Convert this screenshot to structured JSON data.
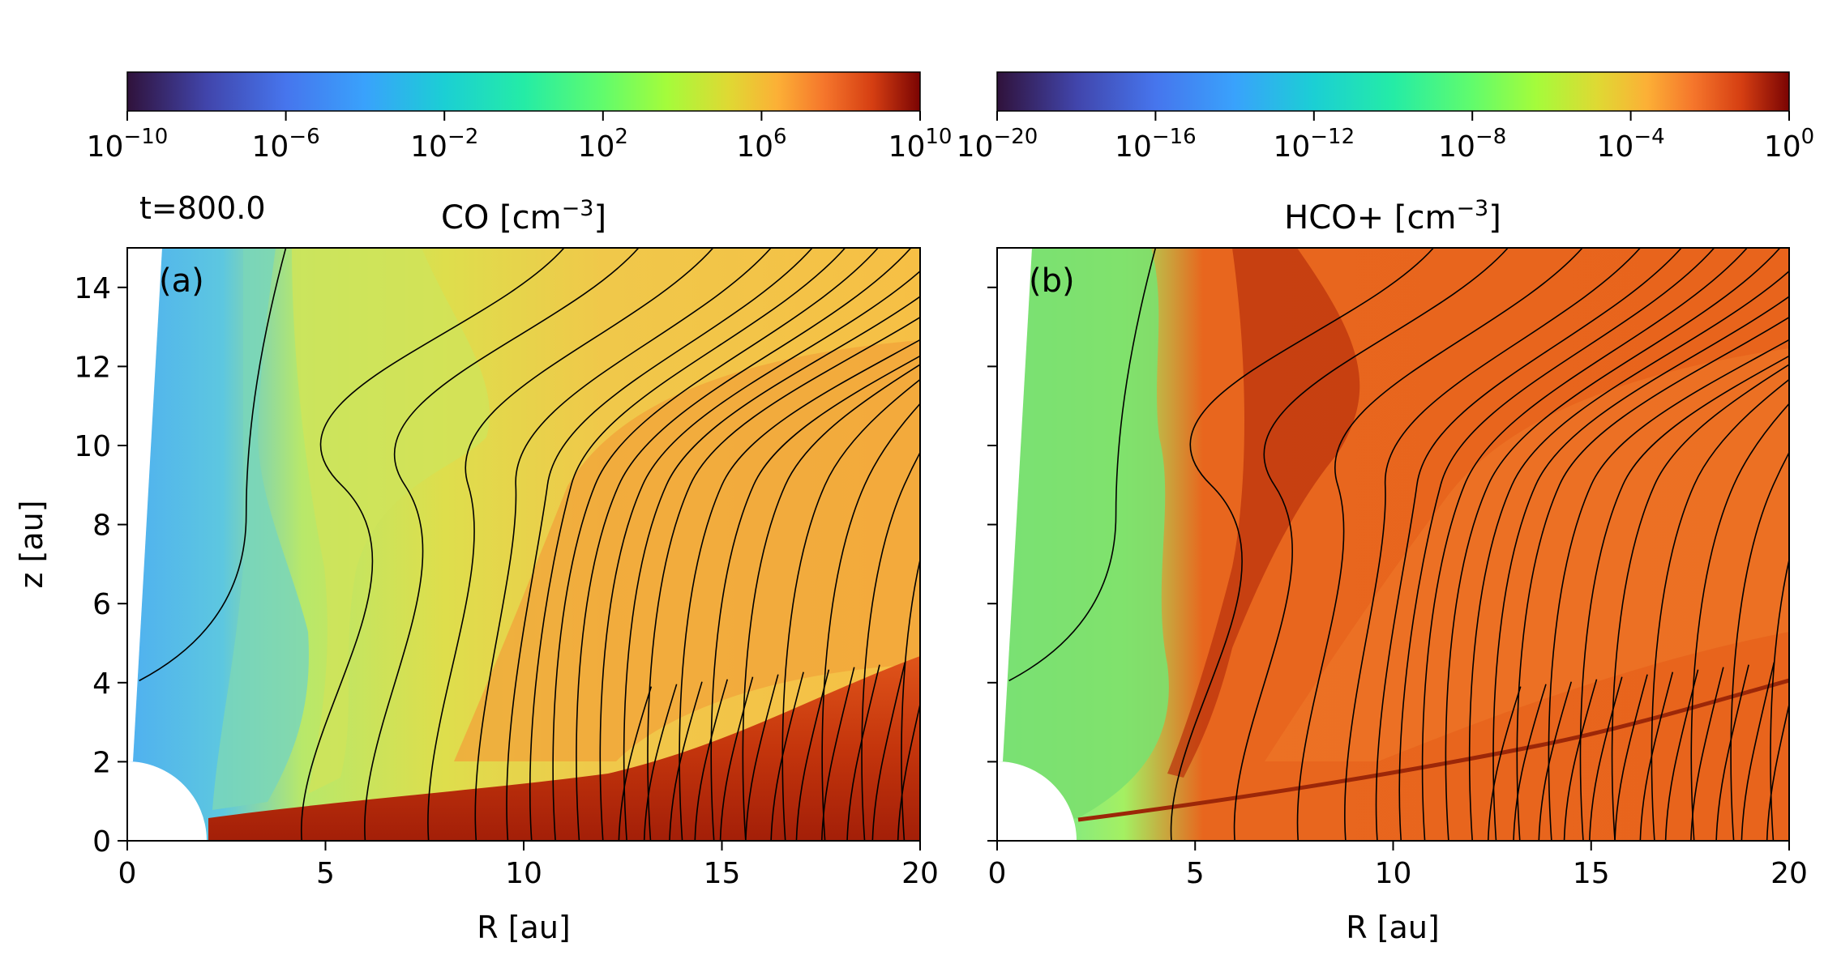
{
  "time_label": "t=800.0",
  "chart_data": [
    {
      "type": "heatmap",
      "panel_label": "(a)",
      "title": "CO [cm",
      "title_sup": "−3",
      "title_end": "]",
      "xlabel": "R [au]",
      "ylabel": "z [au]",
      "xlim": [
        0,
        20
      ],
      "ylim": [
        0,
        15
      ],
      "x_ticks": [
        "0",
        "5",
        "10",
        "15",
        "20"
      ],
      "y_ticks": [
        "0",
        "2",
        "4",
        "6",
        "8",
        "10",
        "12",
        "14"
      ],
      "colorbar": {
        "scale": "log",
        "range": [
          1e-10,
          10000000000.0
        ],
        "ticks": [
          {
            "base": "10",
            "exp": "−10"
          },
          {
            "base": "10",
            "exp": "−6"
          },
          {
            "base": "10",
            "exp": "−2"
          },
          {
            "base": "10",
            "exp": "2"
          },
          {
            "base": "10",
            "exp": "6"
          },
          {
            "base": "10",
            "exp": "10"
          }
        ],
        "colormap": "turbo"
      }
    },
    {
      "type": "heatmap",
      "panel_label": "(b)",
      "title": "HCO+ [cm",
      "title_sup": "−3",
      "title_end": "]",
      "xlabel": "R [au]",
      "ylabel": "",
      "xlim": [
        0,
        20
      ],
      "ylim": [
        0,
        15
      ],
      "x_ticks": [
        "0",
        "5",
        "10",
        "15",
        "20"
      ],
      "y_ticks": [],
      "colorbar": {
        "scale": "log",
        "range": [
          1e-20,
          1
        ],
        "ticks": [
          {
            "base": "10",
            "exp": "−20"
          },
          {
            "base": "10",
            "exp": "−16"
          },
          {
            "base": "10",
            "exp": "−12"
          },
          {
            "base": "10",
            "exp": "−8"
          },
          {
            "base": "10",
            "exp": "−4"
          },
          {
            "base": "10",
            "exp": "0"
          }
        ],
        "colormap": "turbo"
      }
    }
  ]
}
